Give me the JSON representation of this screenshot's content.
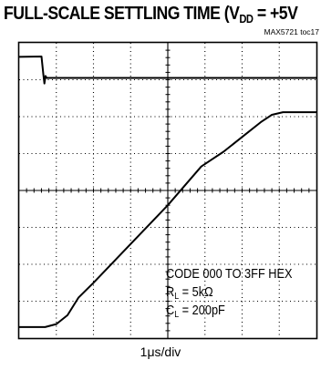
{
  "title": {
    "main": "FULL-SCALE SETTLING TIME  (V",
    "sub": "DD",
    "tail": " = +5V"
  },
  "toc_ref": "MAX5721 toc17",
  "x_scale": "1μs/div",
  "annotations": {
    "code": "CODE 000 TO 3FF HEX",
    "rl": {
      "symbol": "R",
      "sub": "L",
      "value": " = 5kΩ"
    },
    "cl": {
      "symbol": "C",
      "sub": "L",
      "value": " = 200pF"
    }
  },
  "chart_data": {
    "type": "line",
    "grid": {
      "x_divisions": 8,
      "y_divisions": 8,
      "style": "dotted"
    },
    "x_unit_per_div": "1μs",
    "series": [
      {
        "role": "digital-trigger",
        "points": [
          [
            0,
            7.62
          ],
          [
            0.6,
            7.63
          ],
          [
            0.65,
            7.15
          ],
          [
            0.68,
            6.9
          ],
          [
            0.71,
            7.1
          ],
          [
            0.74,
            7.05
          ],
          [
            8,
            7.05
          ]
        ]
      },
      {
        "role": "output-settling",
        "points": [
          [
            0,
            0.3
          ],
          [
            0.3,
            0.3
          ],
          [
            0.7,
            0.3
          ],
          [
            1.0,
            0.38
          ],
          [
            1.3,
            0.62
          ],
          [
            1.6,
            1.1
          ],
          [
            2.0,
            1.5
          ],
          [
            3.0,
            2.55
          ],
          [
            4.0,
            3.6
          ],
          [
            4.9,
            4.65
          ],
          [
            5.2,
            4.85
          ],
          [
            5.5,
            5.05
          ],
          [
            6.0,
            5.45
          ],
          [
            6.5,
            5.85
          ],
          [
            6.8,
            6.05
          ],
          [
            7.1,
            6.12
          ],
          [
            8,
            6.12
          ]
        ]
      }
    ]
  }
}
